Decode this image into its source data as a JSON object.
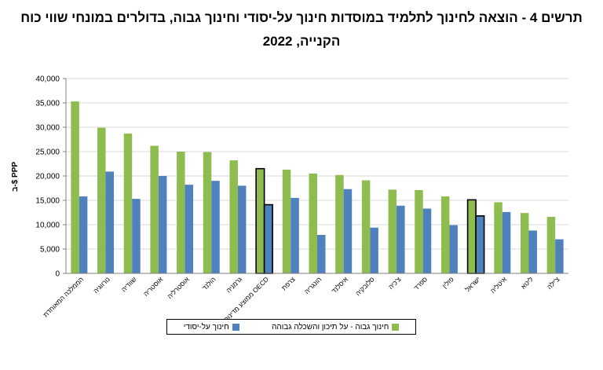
{
  "title": {
    "line1": "תרשים 4 - הוצאה לחינוך לתלמיד במוסדות חינוך על-יסודי וחינוך גבוה, בדולרים במונחי שווי כוח",
    "line2": "הקנייה, 2022"
  },
  "colors": {
    "higher": "#8fbc4f",
    "secondary": "#4f81bd",
    "grid": "#d9d9d9",
    "highlight_border": "#000000"
  },
  "chart_data": {
    "type": "bar",
    "ylabel": "ב-$ PPP",
    "ylim": [
      0,
      40000
    ],
    "yticks": [
      "0",
      "5,000",
      "10,000",
      "15,000",
      "20,000",
      "25,000",
      "30,000",
      "35,000",
      "40,000"
    ],
    "categories": [
      "הממלכה המאוחדת",
      "נורווגיה",
      "שוודיה",
      "אוסטריה",
      "אוסטרליה",
      "הולנד",
      "גרמניה",
      "ממוצע מדינות OECD",
      "צרפת",
      "הונגריה",
      "איסלנד",
      "סלובקיה",
      "צ'כיה",
      "ספרד",
      "פולין",
      "ישראל",
      "איטליה",
      "ליטא",
      "צ'ילה"
    ],
    "highlighted": [
      "ממוצע מדינות OECD",
      "ישראל"
    ],
    "series": [
      {
        "name": "חינוך גבוה - על תיכון והשכלה גבוהה",
        "key": "higher",
        "values": [
          35300,
          29900,
          28700,
          26200,
          25000,
          24900,
          23200,
          21500,
          21300,
          20500,
          20200,
          19100,
          17200,
          17100,
          15800,
          15100,
          14600,
          12400,
          11600
        ]
      },
      {
        "name": "חינוך על-יסודי",
        "key": "secondary",
        "values": [
          15800,
          20900,
          15300,
          20000,
          18200,
          19000,
          18000,
          14100,
          15500,
          7900,
          17300,
          9400,
          13900,
          13300,
          9900,
          11800,
          12600,
          8800,
          7000
        ]
      }
    ]
  }
}
